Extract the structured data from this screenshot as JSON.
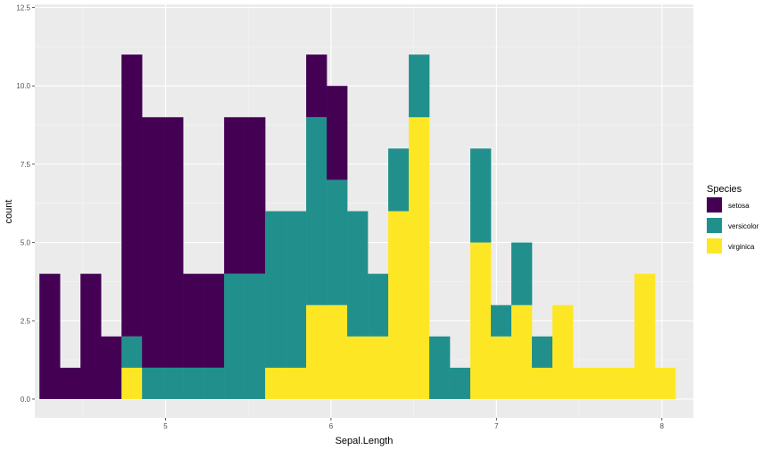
{
  "chart_data": {
    "type": "histogram-stacked",
    "xlabel": "Sepal.Length",
    "ylabel": "count",
    "x_ticks": [
      "5",
      "6",
      "7",
      "8"
    ],
    "y_ticks": [
      "0.0",
      "2.5",
      "5.0",
      "7.5",
      "10.0",
      "12.5"
    ],
    "xlim": [
      4.21,
      8.19
    ],
    "ylim": [
      -0.6,
      12.6
    ],
    "bins": {
      "start": 4.3,
      "width": 0.124
    },
    "colors": {
      "panel": "#EBEBEB",
      "grid_major": "#FFFFFF",
      "grid_minor": "#F5F5F5"
    },
    "legend": {
      "title": "Species",
      "position": "right"
    },
    "series": [
      {
        "name": "setosa",
        "color": "#440154",
        "values": [
          4,
          1,
          4,
          2,
          9,
          8,
          8,
          3,
          3,
          5,
          5,
          0,
          0,
          2,
          3,
          0,
          0,
          0,
          0,
          0,
          0,
          0,
          0,
          0,
          0,
          0,
          0,
          0,
          0,
          0,
          0
        ]
      },
      {
        "name": "versicolor",
        "color": "#21908C",
        "values": [
          0,
          0,
          0,
          0,
          1,
          1,
          1,
          1,
          1,
          4,
          4,
          5,
          5,
          6,
          4,
          4,
          2,
          2,
          2,
          2,
          1,
          3,
          1,
          2,
          1,
          0,
          0,
          0,
          0,
          0,
          0
        ]
      },
      {
        "name": "virginica",
        "color": "#FDE725",
        "values": [
          0,
          0,
          0,
          0,
          1,
          0,
          0,
          0,
          0,
          0,
          0,
          1,
          1,
          3,
          3,
          2,
          2,
          6,
          9,
          0,
          0,
          5,
          2,
          3,
          1,
          3,
          1,
          1,
          1,
          4,
          1
        ]
      }
    ]
  }
}
